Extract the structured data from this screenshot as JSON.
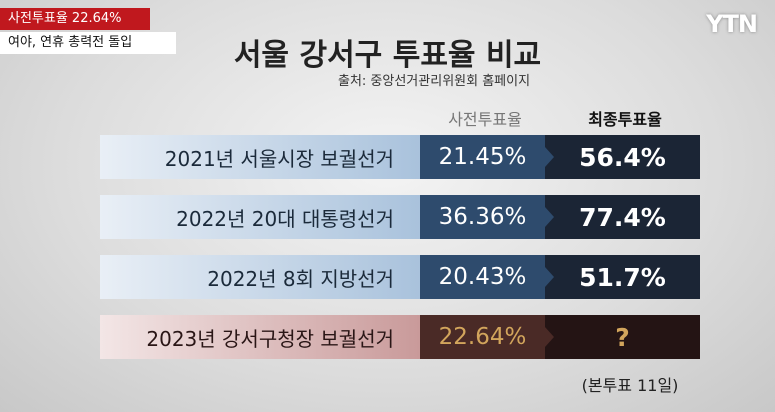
{
  "caption": {
    "headline": "사전투표율 22.64%",
    "subline": "여야, 연휴 총력전 돌입"
  },
  "logo": "YTN",
  "header": {
    "title": "서울 강서구 투표율 비교",
    "source": "출처: 중앙선거관리위원회 홈페이지"
  },
  "table": {
    "columns": [
      "사전투표율",
      "최종투표율"
    ],
    "rows": [
      [
        "2021년 서울시장 보궐선거",
        "21.45%",
        "56.4%"
      ],
      [
        "2022년 20대 대통령선거",
        "36.36%",
        "77.4%"
      ],
      [
        "2022년 8회 지방선거",
        "20.43%",
        "51.7%"
      ],
      [
        "2023년 강서구청장 보궐선거",
        "22.64%",
        "?"
      ]
    ]
  },
  "note": "(본투표 11일)"
}
